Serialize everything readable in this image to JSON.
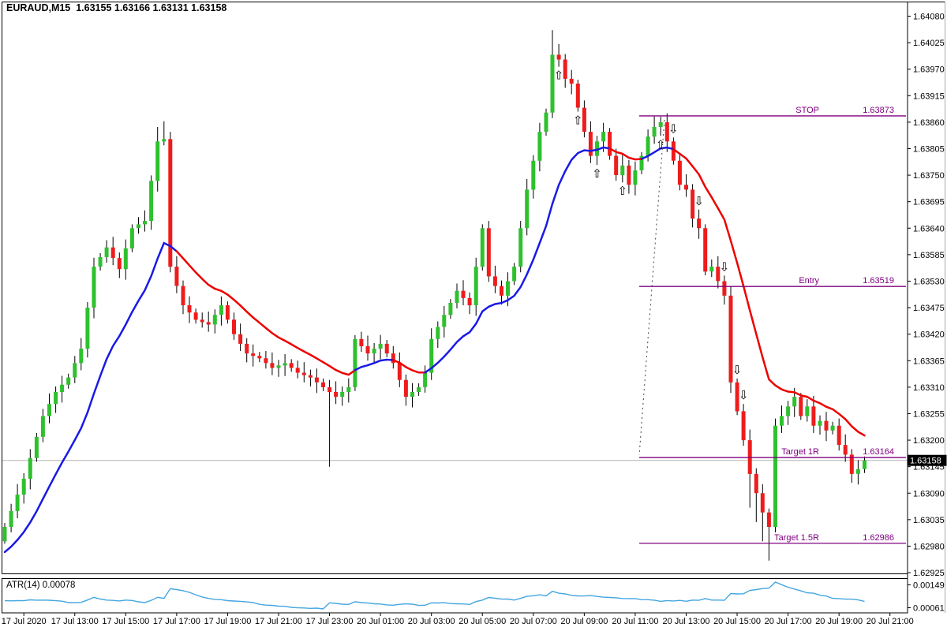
{
  "header": {
    "symbol_period": "EURAUD,M15",
    "open": "1.63155",
    "high": "1.63166",
    "low": "1.63131",
    "close": "1.63158",
    "title_line": "EURAUD,M15  1.63155 1.63166 1.63131 1.63158"
  },
  "colors": {
    "bull": "#2EC12E",
    "bear": "#EE1C1C",
    "wick": "#000000",
    "ma_up": "#1A1AE6",
    "ma_down": "#EE0000",
    "trade_level": "#800080",
    "dotted_link": "#444444",
    "atr_line": "#44A6E0",
    "arrow_up": "#4F6BE0",
    "arrow_down": "#F28B8B",
    "current_price_line": "#B4B4B4",
    "badge_bg": "#000000",
    "badge_text": "#FFFFFF",
    "border": "#000000"
  },
  "chart_data": {
    "type": "candlestick",
    "symbol": "EURAUD",
    "timeframe": "M15",
    "title": "EURAUD,M15",
    "current_price": "1.63158",
    "price_axis_ticks": [
      "1.64080",
      "1.64025",
      "1.63970",
      "1.63915",
      "1.63860",
      "1.63805",
      "1.63750",
      "1.63695",
      "1.63640",
      "1.63585",
      "1.63530",
      "1.63475",
      "1.63420",
      "1.63365",
      "1.63310",
      "1.63255",
      "1.63200",
      "1.63145",
      "1.63090",
      "1.63035",
      "1.62980",
      "1.62925"
    ],
    "time_axis_ticks": [
      "17 Jul 2020",
      "17 Jul 13:00",
      "17 Jul 15:00",
      "17 Jul 17:00",
      "17 Jul 19:00",
      "17 Jul 21:00",
      "17 Jul 23:00",
      "20 Jul 01:00",
      "20 Jul 03:00",
      "20 Jul 05:00",
      "20 Jul 07:00",
      "20 Jul 09:00",
      "20 Jul 11:00",
      "20 Jul 13:00",
      "20 Jul 15:00",
      "20 Jul 17:00",
      "20 Jul 19:00",
      "20 Jul 21:00"
    ],
    "open_first": 1.6299,
    "closes": [
      1.6302,
      1.63053,
      1.63087,
      1.6312,
      1.63163,
      1.63207,
      1.6325,
      1.63275,
      1.633,
      1.63315,
      1.6333,
      1.6336,
      1.6339,
      1.63475,
      1.6356,
      1.6358,
      1.636,
      1.63578,
      1.63555,
      1.63598,
      1.6364,
      1.63648,
      1.63655,
      1.63738,
      1.6382,
      1.63825,
      1.6356,
      1.6352,
      1.6348,
      1.63465,
      1.6345,
      1.63445,
      1.6344,
      1.6346,
      1.6348,
      1.6345,
      1.6342,
      1.634,
      1.6338,
      1.63375,
      1.6337,
      1.6336,
      1.6335,
      1.63355,
      1.6336,
      1.6335,
      1.6334,
      1.63335,
      1.6333,
      1.6332,
      1.6331,
      1.633,
      1.6329,
      1.633,
      1.6331,
      1.6341,
      1.63395,
      1.6338,
      1.6339,
      1.634,
      1.6338,
      1.6336,
      1.63325,
      1.6329,
      1.633,
      1.6331,
      1.6334,
      1.6341,
      1.63435,
      1.6346,
      1.63485,
      1.6351,
      1.63495,
      1.6348,
      1.6356,
      1.6364,
      1.6354,
      1.6352,
      1.635,
      1.6353,
      1.6356,
      1.6364,
      1.6372,
      1.6378,
      1.6384,
      1.6388,
      1.64,
      1.6399,
      1.6395,
      1.6394,
      1.6389,
      1.6384,
      1.6379,
      1.6382,
      1.6384,
      1.6379,
      1.6375,
      1.6377,
      1.6373,
      1.6376,
      1.6379,
      1.6383,
      1.6385,
      1.6386,
      1.6382,
      1.6378,
      1.6373,
      1.6372,
      1.6366,
      1.6364,
      1.6355,
      1.6356,
      1.6353,
      1.635,
      1.6332,
      1.6326,
      1.632,
      1.6313,
      1.6309,
      1.6305,
      1.6302,
      1.6323,
      1.6325,
      1.6327,
      1.6329,
      1.6325,
      1.6327,
      1.6323,
      1.6324,
      1.6322,
      1.6323,
      1.6319,
      1.6317,
      1.6313,
      1.6314,
      1.63158
    ],
    "wick_overrides": {
      "0": {
        "low": 1.62985
      },
      "24": {
        "high": 1.6385
      },
      "25": {
        "high": 1.63862
      },
      "51": {
        "low": 1.63145
      },
      "86": {
        "high": 1.64051
      },
      "117": {
        "low": 1.6306
      },
      "118": {
        "low": 1.6303
      },
      "119": {
        "low": 1.6299
      },
      "120": {
        "low": 1.6295
      }
    },
    "ma": {
      "description": "trend-colored moving average (blue rising / red falling)",
      "alpha": 0.13,
      "seed": 1.6296,
      "slope_lookback": 3
    },
    "indicator": {
      "name": "ATR",
      "period": 14,
      "current": "0.00078",
      "label": "ATR(14) 0.00078",
      "axis_ticks": [
        "0.00149",
        "0.00061"
      ],
      "alpha": 0.12,
      "seed": 0.00068
    },
    "trade_levels": [
      {
        "id": "stop",
        "label": "STOP",
        "value": "1.63873",
        "price": 1.63873
      },
      {
        "id": "entry",
        "label": "Entry",
        "value": "1.63519",
        "price": 1.63519
      },
      {
        "id": "target-1r",
        "label": "Target 1R",
        "value": "1.63164",
        "price": 1.63164
      },
      {
        "id": "target-15r",
        "label": "Target 1.5R",
        "value": "1.62986",
        "price": 1.62986
      }
    ],
    "signals": {
      "up_indices": [
        87,
        90,
        93,
        97,
        103
      ],
      "down_indices": [
        105,
        109,
        113,
        115,
        116
      ]
    }
  }
}
